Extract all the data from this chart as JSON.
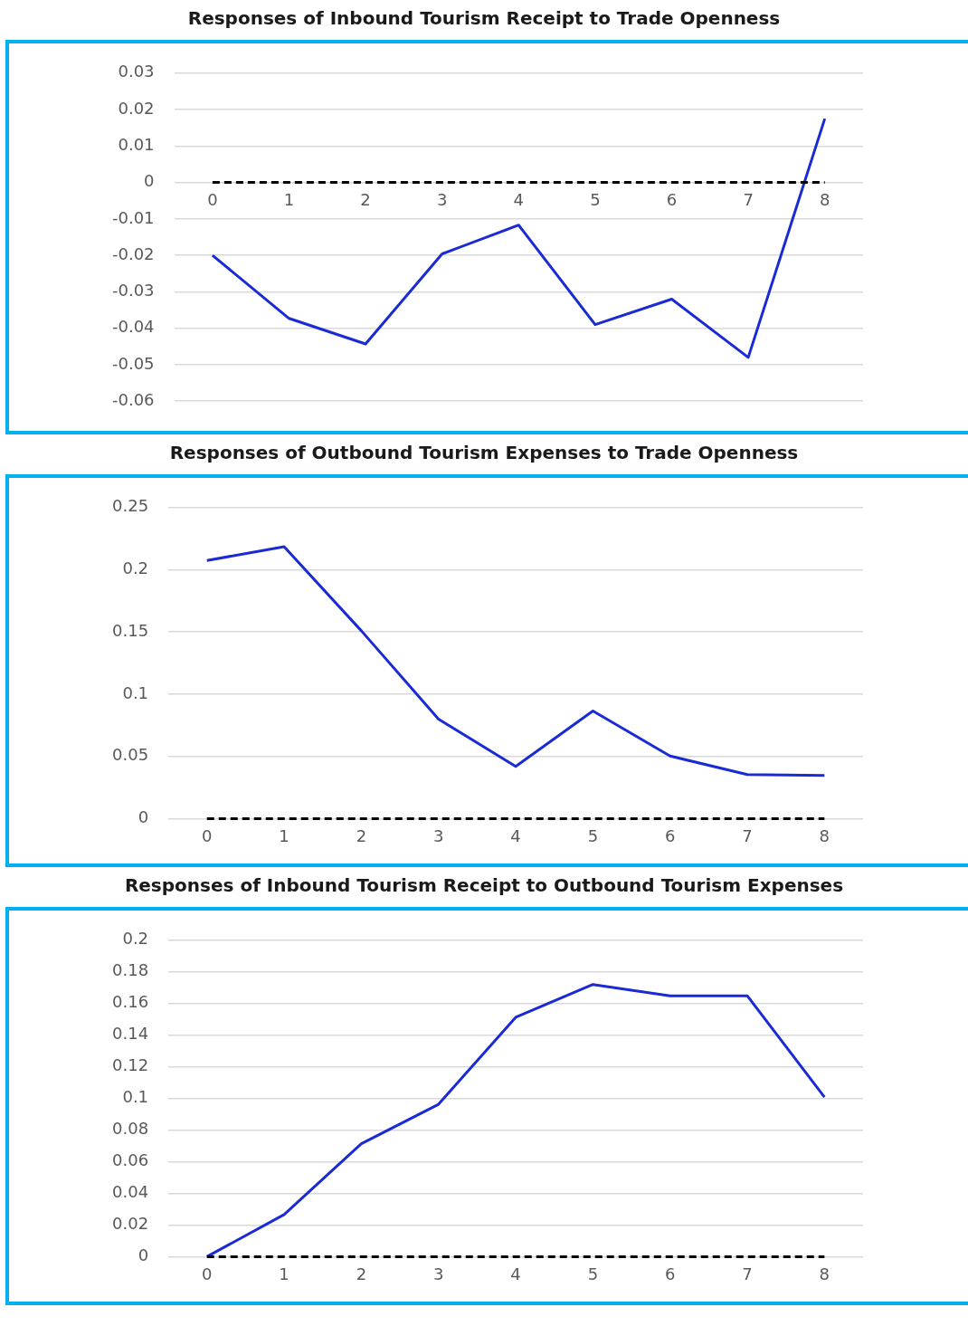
{
  "chart_data": [
    {
      "type": "line",
      "title": "Responses of Inbound Tourism Receipt to Trade Openness",
      "categories": [
        "0",
        "1",
        "2",
        "3",
        "4",
        "5",
        "6",
        "7",
        "8"
      ],
      "series": [
        {
          "color": "#1a2bd6",
          "values": [
            -0.02,
            -0.0373,
            -0.0443,
            -0.0196,
            -0.0117,
            -0.039,
            -0.032,
            -0.048,
            0.0175
          ]
        }
      ],
      "ylim": [
        -0.06,
        0.03
      ],
      "yticks": [
        -0.06,
        -0.05,
        -0.04,
        -0.03,
        -0.02,
        -0.01,
        0,
        0.01,
        0.02,
        0.03
      ],
      "grid": "y",
      "marker": "none",
      "line_style": "solid",
      "legend": false,
      "ref_lines": [
        {
          "axis": "y",
          "value": 0,
          "color": "#000000",
          "line_style": "dashed"
        }
      ]
    },
    {
      "type": "line",
      "title": "Responses of Outbound Tourism Expenses to Trade Openness",
      "categories": [
        "0",
        "1",
        "2",
        "3",
        "4",
        "5",
        "6",
        "7",
        "8"
      ],
      "series": [
        {
          "color": "#1a2bd6",
          "values": [
            0.2075,
            0.2185,
            0.151,
            0.08,
            0.042,
            0.0865,
            0.0503,
            0.0354,
            0.0347
          ]
        }
      ],
      "ylim": [
        0,
        0.25
      ],
      "yticks": [
        0,
        0.05,
        0.1,
        0.15,
        0.2,
        0.25
      ],
      "grid": "y",
      "marker": "none",
      "line_style": "solid",
      "legend": false,
      "ref_lines": [
        {
          "axis": "y",
          "value": 0,
          "color": "#000000",
          "line_style": "dashed"
        }
      ]
    },
    {
      "type": "line",
      "title": "Responses of Inbound Tourism Receipt to Outbound Tourism Expenses",
      "categories": [
        "0",
        "1",
        "2",
        "3",
        "4",
        "5",
        "6",
        "7",
        "8"
      ],
      "series": [
        {
          "color": "#1a2bd6",
          "values": [
            0,
            0.0266,
            0.0714,
            0.0963,
            0.1513,
            0.172,
            0.1649,
            0.1649,
            0.1008
          ]
        }
      ],
      "ylim": [
        0,
        0.2
      ],
      "yticks": [
        0,
        0.02,
        0.04,
        0.06,
        0.08,
        0.1,
        0.12,
        0.14,
        0.16,
        0.18,
        0.2
      ],
      "grid": "y",
      "marker": "none",
      "line_style": "solid",
      "legend": false,
      "ref_lines": [
        {
          "axis": "y",
          "value": 0,
          "color": "#000000",
          "line_style": "dashed"
        }
      ]
    }
  ]
}
